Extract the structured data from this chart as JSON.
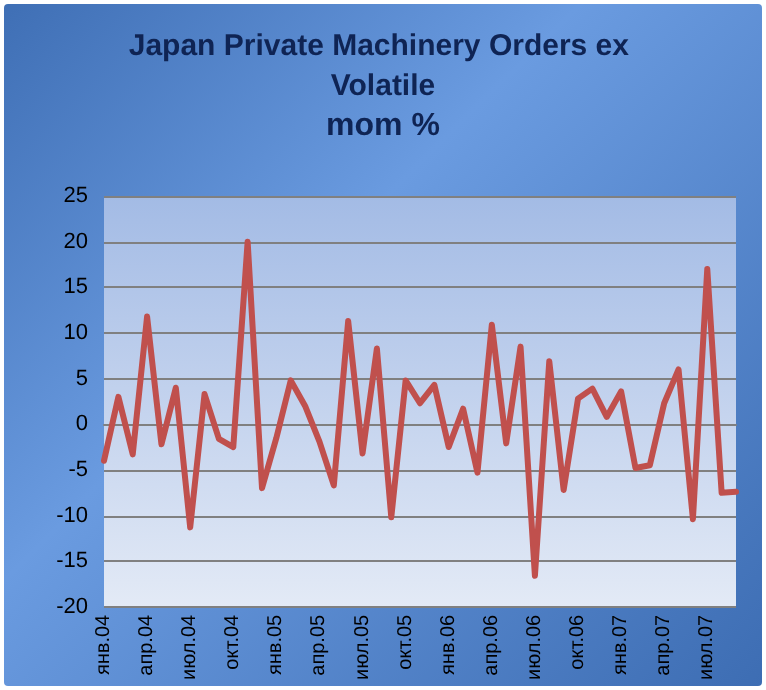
{
  "chart_data": {
    "type": "line",
    "title": "Japan Private Machinery Orders ex Volatile",
    "subtitle": "mom %",
    "categories": [
      "янв.04",
      null,
      null,
      "апр.04",
      null,
      null,
      "июл.04",
      null,
      null,
      "окт.04",
      null,
      null,
      "янв.05",
      null,
      null,
      "апр.05",
      null,
      null,
      "июл.05",
      null,
      null,
      "окт.05",
      null,
      null,
      "янв.06",
      null,
      null,
      "апр.06",
      null,
      null,
      "июл.06",
      null,
      null,
      "окт.06",
      null,
      null,
      "янв.07",
      null,
      null,
      "апр.07",
      null,
      null,
      "июл.07",
      null,
      null
    ],
    "series": [
      {
        "color": "#c0504d",
        "values": [
          -4,
          3,
          -3.3,
          11.8,
          -2.2,
          4,
          -11.3,
          3.3,
          -1.6,
          -2.5,
          20,
          -7,
          -1.5,
          4.8,
          2,
          -1.9,
          -6.7,
          11.3,
          -3.2,
          8.3,
          -10.2,
          4.8,
          2.3,
          4.3,
          -2.5,
          1.7,
          -5.3,
          10.9,
          -2.1,
          8.5,
          -16.6,
          6.9,
          -7.2,
          2.8,
          3.9,
          0.8,
          3.6,
          -4.8,
          -4.5,
          2.3,
          6,
          -10.4,
          17,
          -7.5,
          -7.4
        ]
      }
    ],
    "ylim": [
      -20,
      25
    ],
    "yticks": [
      -20,
      -15,
      -10,
      -5,
      0,
      5,
      10,
      15,
      20,
      25
    ],
    "grid": "y",
    "marker": "none",
    "line_style": "solid"
  }
}
